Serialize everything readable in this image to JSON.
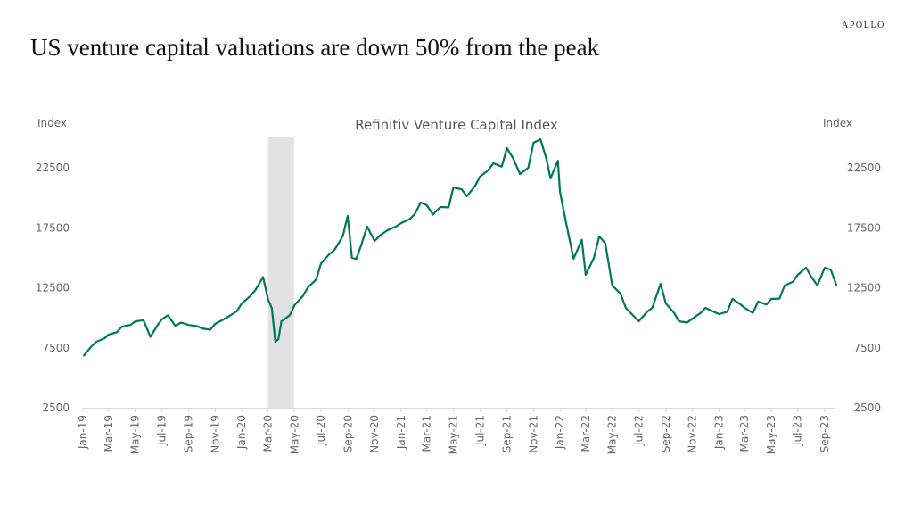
{
  "header": {
    "title": "US venture capital valuations are down 50% from the peak",
    "logo": "APOLLO"
  },
  "colors": {
    "line": "#00775A",
    "shade": "#E2E2E2",
    "axis": "#D9D9D9"
  },
  "chart_data": {
    "type": "line",
    "title": "Refinitiv Venture Capital Index",
    "ylabel_left": "Index",
    "ylabel_right": "Index",
    "ylim": [
      2500,
      25000
    ],
    "yticks": [
      2500,
      7500,
      12500,
      17500,
      22500
    ],
    "xlim": [
      "2019-01-01",
      "2023-09-30"
    ],
    "xticks": [
      "Jan-19",
      "Mar-19",
      "May-19",
      "Jul-19",
      "Sep-19",
      "Nov-19",
      "Jan-20",
      "Mar-20",
      "May-20",
      "Jul-20",
      "Sep-20",
      "Nov-20",
      "Jan-21",
      "Mar-21",
      "May-21",
      "Jul-21",
      "Sep-21",
      "Nov-21",
      "Jan-22",
      "Mar-22",
      "May-22",
      "Jul-22",
      "Sep-22",
      "Nov-22",
      "Jan-23",
      "Mar-23",
      "May-23",
      "Jul-23",
      "Sep-23"
    ],
    "shaded_region": [
      "2020-03-01",
      "2020-04-30"
    ],
    "grid": false,
    "series": [
      {
        "x": [
          "2019-01-02",
          "2019-01-20",
          "2019-02-01",
          "2019-02-20",
          "2019-03-01",
          "2019-03-20",
          "2019-04-01",
          "2019-04-20",
          "2019-05-01",
          "2019-05-20",
          "2019-06-05",
          "2019-06-20",
          "2019-07-01",
          "2019-07-15",
          "2019-08-01",
          "2019-08-15",
          "2019-09-01",
          "2019-09-20",
          "2019-10-01",
          "2019-10-20",
          "2019-11-01",
          "2019-11-20",
          "2019-12-01",
          "2019-12-20",
          "2020-01-01",
          "2020-01-20",
          "2020-02-01",
          "2020-02-19",
          "2020-03-01",
          "2020-03-10",
          "2020-03-18",
          "2020-03-25",
          "2020-04-01",
          "2020-04-20",
          "2020-05-01",
          "2020-05-20",
          "2020-06-01",
          "2020-06-20",
          "2020-07-01",
          "2020-07-20",
          "2020-08-01",
          "2020-08-20",
          "2020-08-31",
          "2020-09-10",
          "2020-09-20",
          "2020-10-01",
          "2020-10-15",
          "2020-11-01",
          "2020-11-15",
          "2020-12-01",
          "2020-12-20",
          "2021-01-01",
          "2021-01-20",
          "2021-02-01",
          "2021-02-15",
          "2021-03-01",
          "2021-03-15",
          "2021-04-01",
          "2021-04-20",
          "2021-05-01",
          "2021-05-20",
          "2021-06-01",
          "2021-06-20",
          "2021-07-01",
          "2021-07-20",
          "2021-08-01",
          "2021-08-20",
          "2021-09-01",
          "2021-09-15",
          "2021-10-01",
          "2021-10-20",
          "2021-11-01",
          "2021-11-17",
          "2021-12-01",
          "2021-12-10",
          "2021-12-27",
          "2022-01-01",
          "2022-01-15",
          "2022-02-01",
          "2022-02-20",
          "2022-03-01",
          "2022-03-20",
          "2022-04-01",
          "2022-04-15",
          "2022-05-01",
          "2022-05-20",
          "2022-06-01",
          "2022-06-15",
          "2022-07-01",
          "2022-07-20",
          "2022-08-01",
          "2022-08-20",
          "2022-09-01",
          "2022-09-20",
          "2022-10-01",
          "2022-10-20",
          "2022-11-01",
          "2022-11-20",
          "2022-12-01",
          "2022-12-20",
          "2023-01-01",
          "2023-01-20",
          "2023-02-01",
          "2023-02-20",
          "2023-03-01",
          "2023-03-20",
          "2023-04-01",
          "2023-04-20",
          "2023-05-01",
          "2023-05-20",
          "2023-06-01",
          "2023-06-20",
          "2023-07-01",
          "2023-07-20",
          "2023-08-01",
          "2023-08-15",
          "2023-09-01",
          "2023-09-15",
          "2023-09-28"
        ],
        "y": [
          6800,
          7600,
          8000,
          8300,
          8600,
          8800,
          9270,
          9400,
          9700,
          9800,
          8400,
          9300,
          9860,
          10200,
          9340,
          9600,
          9400,
          9300,
          9120,
          9000,
          9500,
          9860,
          10100,
          10530,
          11200,
          11800,
          12300,
          13400,
          11570,
          10800,
          8000,
          8200,
          9700,
          10200,
          11050,
          11800,
          12540,
          13200,
          14540,
          15300,
          15660,
          16800,
          18490,
          15000,
          14900,
          16030,
          17600,
          16400,
          16900,
          17300,
          17600,
          17890,
          18200,
          18630,
          19600,
          19380,
          18600,
          19230,
          19200,
          20860,
          20700,
          20120,
          21000,
          21760,
          22300,
          22870,
          22600,
          24140,
          23300,
          21980,
          22500,
          24580,
          24880,
          23200,
          21610,
          23090,
          20490,
          17890,
          14920,
          16500,
          13580,
          15000,
          16780,
          16200,
          12690,
          12000,
          10830,
          10300,
          9710,
          10500,
          10830,
          12830,
          11200,
          10400,
          9710,
          9600,
          9930,
          10400,
          10830,
          10500,
          10310,
          10500,
          11570,
          11100,
          10830,
          10400,
          11350,
          11100,
          11570,
          11600,
          12690,
          13000,
          13580,
          14170,
          13430,
          12690,
          14170,
          14000,
          12690
        ]
      }
    ]
  }
}
